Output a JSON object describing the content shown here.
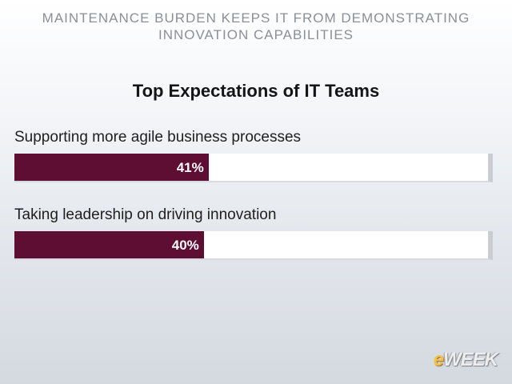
{
  "header": {
    "line1": "MAINTENANCE BURDEN KEEPS IT FROM DEMONSTRATING",
    "line2": "INNOVATION CAPABILITIES"
  },
  "logo": {
    "e": "e",
    "rest": "WEEK"
  },
  "colors": {
    "bar_fill": "#5f0e33",
    "track": "#ffffff",
    "value_text": "#ffffff"
  },
  "chart_data": {
    "type": "bar",
    "orientation": "horizontal",
    "title": "Top Expectations of IT Teams",
    "categories": [
      "Supporting more agile business processes",
      "Taking leadership on driving innovation"
    ],
    "values": [
      41,
      40
    ],
    "value_labels": [
      "41%",
      "40%"
    ],
    "xlim": [
      0,
      100
    ],
    "grid": false,
    "legend": false
  }
}
